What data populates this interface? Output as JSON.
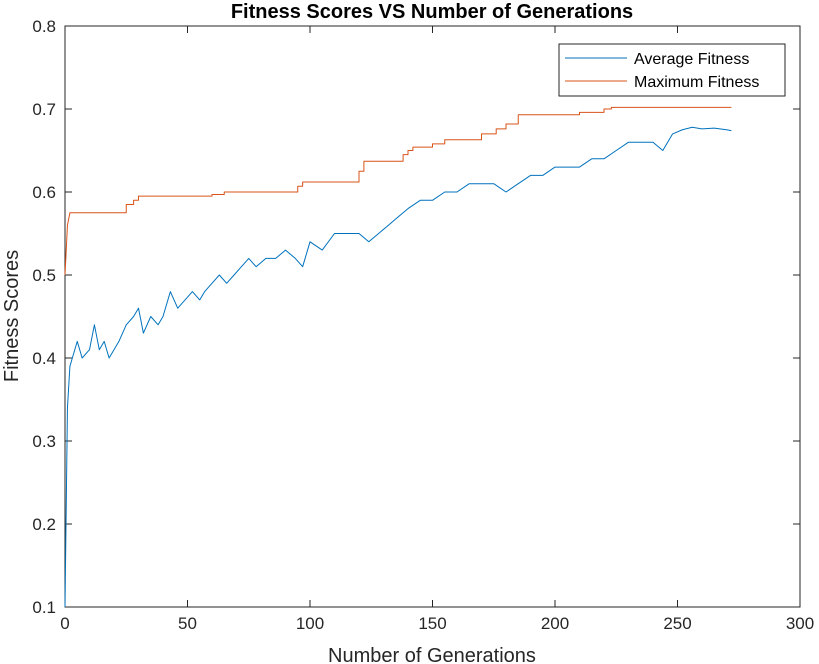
{
  "chart_data": {
    "type": "line",
    "title": "Fitness Scores VS Number of Generations",
    "xlabel": "Number of Generations",
    "ylabel": "Fitness Scores",
    "xlim": [
      0,
      300
    ],
    "ylim": [
      0.1,
      0.8
    ],
    "xticks": [
      "0",
      "50",
      "100",
      "150",
      "200",
      "250",
      "300"
    ],
    "yticks": [
      "0.1",
      "0.2",
      "0.3",
      "0.4",
      "0.5",
      "0.6",
      "0.7",
      "0.8"
    ],
    "grid": false,
    "legend_position": "top-right",
    "series": [
      {
        "name": "Average Fitness",
        "color": "#0072BD",
        "x": [
          0,
          1,
          2,
          3,
          5,
          7,
          10,
          12,
          14,
          16,
          18,
          20,
          22,
          25,
          28,
          30,
          32,
          35,
          38,
          40,
          43,
          46,
          49,
          52,
          55,
          57,
          60,
          63,
          66,
          69,
          72,
          75,
          78,
          82,
          86,
          90,
          94,
          97,
          100,
          105,
          110,
          115,
          120,
          124,
          128,
          132,
          136,
          140,
          145,
          150,
          155,
          160,
          165,
          170,
          175,
          180,
          185,
          190,
          195,
          200,
          205,
          210,
          215,
          220,
          225,
          230,
          235,
          240,
          244,
          248,
          252,
          256,
          260,
          265,
          270,
          272
        ],
        "y": [
          0.1,
          0.34,
          0.39,
          0.4,
          0.42,
          0.4,
          0.41,
          0.44,
          0.41,
          0.42,
          0.4,
          0.41,
          0.42,
          0.44,
          0.45,
          0.46,
          0.43,
          0.45,
          0.44,
          0.45,
          0.48,
          0.46,
          0.47,
          0.48,
          0.47,
          0.48,
          0.49,
          0.5,
          0.49,
          0.5,
          0.51,
          0.52,
          0.51,
          0.52,
          0.52,
          0.53,
          0.52,
          0.51,
          0.54,
          0.53,
          0.55,
          0.55,
          0.55,
          0.54,
          0.55,
          0.56,
          0.57,
          0.58,
          0.59,
          0.59,
          0.6,
          0.6,
          0.61,
          0.61,
          0.61,
          0.6,
          0.61,
          0.62,
          0.62,
          0.63,
          0.63,
          0.63,
          0.64,
          0.64,
          0.65,
          0.66,
          0.66,
          0.66,
          0.65,
          0.67,
          0.675,
          0.678,
          0.676,
          0.677,
          0.675,
          0.674
        ]
      },
      {
        "name": "Maximum Fitness",
        "color": "#D95319",
        "x": [
          0,
          1,
          2,
          25,
          25,
          28,
          28,
          30,
          30,
          60,
          60,
          65,
          65,
          95,
          95,
          97,
          97,
          120,
          120,
          122,
          122,
          138,
          138,
          140,
          140,
          142,
          142,
          150,
          150,
          155,
          155,
          170,
          170,
          176,
          176,
          180,
          180,
          185,
          185,
          210,
          210,
          220,
          220,
          223,
          223,
          272
        ],
        "y": [
          0.5,
          0.56,
          0.575,
          0.575,
          0.585,
          0.585,
          0.59,
          0.59,
          0.595,
          0.595,
          0.597,
          0.597,
          0.6,
          0.6,
          0.607,
          0.607,
          0.612,
          0.612,
          0.625,
          0.625,
          0.637,
          0.637,
          0.645,
          0.645,
          0.65,
          0.65,
          0.654,
          0.654,
          0.658,
          0.658,
          0.663,
          0.663,
          0.67,
          0.67,
          0.676,
          0.676,
          0.682,
          0.682,
          0.693,
          0.693,
          0.696,
          0.696,
          0.7,
          0.7,
          0.702,
          0.702
        ]
      }
    ]
  }
}
